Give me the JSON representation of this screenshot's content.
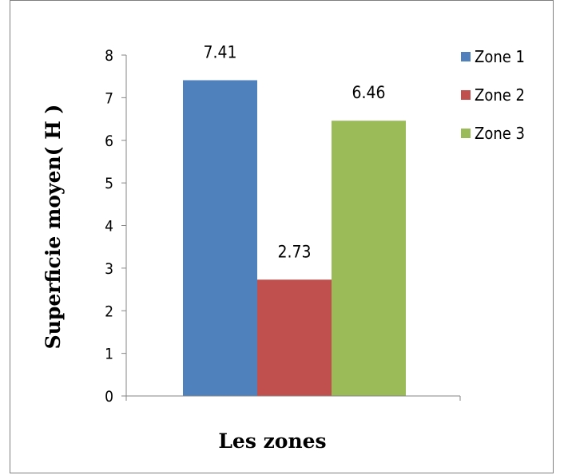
{
  "chart_data": {
    "type": "bar",
    "categories": [
      "Zone 1",
      "Zone 2",
      "Zone 3"
    ],
    "values": [
      7.41,
      2.73,
      6.46
    ],
    "data_labels": [
      "7.41",
      "2.73",
      "6.46"
    ],
    "colors": [
      "#4f81bd",
      "#c0504d",
      "#9bbb59"
    ],
    "title": "",
    "xlabel": "Les zones",
    "ylabel": "Superficie moyen( H )",
    "ylim": [
      0,
      8
    ],
    "yticks": [
      "0",
      "1",
      "2",
      "3",
      "4",
      "5",
      "6",
      "7",
      "8"
    ],
    "grid": false,
    "legend": {
      "position": "right",
      "entries": [
        "Zone 1",
        "Zone 2",
        "Zone 3"
      ]
    }
  }
}
